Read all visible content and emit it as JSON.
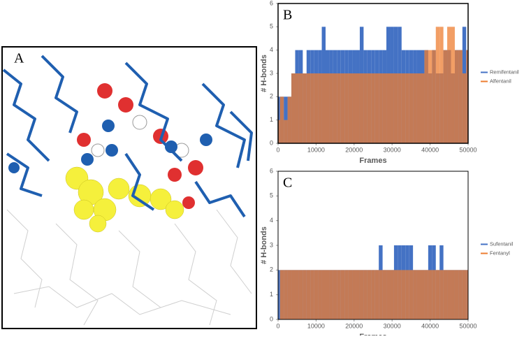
{
  "panel_a": {
    "label": "A"
  },
  "chart_data": [
    {
      "type": "bar",
      "panel_label": "B",
      "xlabel": "Frames",
      "ylabel": "# H-bonds",
      "xlim": [
        0,
        50000
      ],
      "xticks": [
        0,
        10000,
        20000,
        30000,
        40000,
        50000
      ],
      "ylim": [
        0,
        6
      ],
      "yticks": [
        0,
        1,
        2,
        3,
        4,
        5,
        6
      ],
      "grid": false,
      "legend": "right",
      "x": [
        0,
        1000,
        2000,
        3000,
        4000,
        5000,
        6000,
        7000,
        8000,
        9000,
        10000,
        11000,
        12000,
        13000,
        14000,
        15000,
        16000,
        17000,
        18000,
        19000,
        20000,
        21000,
        22000,
        23000,
        24000,
        25000,
        26000,
        27000,
        28000,
        29000,
        30000,
        31000,
        32000,
        33000,
        34000,
        35000,
        36000,
        37000,
        38000,
        39000,
        40000,
        41000,
        42000,
        43000,
        44000,
        45000,
        46000,
        47000,
        48000,
        49000,
        50000
      ],
      "series": [
        {
          "name": "Remifentanil",
          "color": "#4472c4",
          "values": [
            2,
            2,
            2,
            2,
            3,
            4,
            4,
            3,
            4,
            4,
            4,
            4,
            5,
            4,
            4,
            4,
            4,
            4,
            4,
            4,
            4,
            4,
            5,
            4,
            4,
            4,
            4,
            4,
            4,
            5,
            5,
            5,
            5,
            4,
            4,
            4,
            4,
            4,
            4,
            4,
            3,
            4,
            3,
            3,
            4,
            4,
            3,
            4,
            4,
            5,
            4
          ]
        },
        {
          "name": "Alfentanil",
          "color": "#ed7d31",
          "values": [
            1,
            2,
            1,
            2,
            3,
            3,
            3,
            3,
            3,
            3,
            3,
            3,
            3,
            3,
            3,
            3,
            3,
            3,
            3,
            3,
            3,
            3,
            3,
            3,
            3,
            3,
            3,
            3,
            3,
            3,
            3,
            3,
            3,
            3,
            3,
            3,
            3,
            3,
            3,
            4,
            4,
            4,
            5,
            5,
            4,
            5,
            5,
            4,
            4,
            3,
            4
          ]
        }
      ]
    },
    {
      "type": "bar",
      "panel_label": "C",
      "xlabel": "Frames",
      "ylabel": "# H-bonds",
      "xlim": [
        0,
        50000
      ],
      "xticks": [
        0,
        10000,
        20000,
        30000,
        40000,
        50000
      ],
      "ylim": [
        0,
        6
      ],
      "yticks": [
        0,
        1,
        2,
        3,
        4,
        5,
        6
      ],
      "grid": false,
      "legend": "right",
      "x": [
        0,
        1000,
        2000,
        3000,
        4000,
        5000,
        6000,
        7000,
        8000,
        9000,
        10000,
        11000,
        12000,
        13000,
        14000,
        15000,
        16000,
        17000,
        18000,
        19000,
        20000,
        21000,
        22000,
        23000,
        24000,
        25000,
        26000,
        27000,
        28000,
        29000,
        30000,
        31000,
        32000,
        33000,
        34000,
        35000,
        36000,
        37000,
        38000,
        39000,
        40000,
        41000,
        42000,
        43000,
        44000,
        45000,
        46000,
        47000,
        48000,
        49000,
        50000
      ],
      "series": [
        {
          "name": "Sufentanil",
          "color": "#4472c4",
          "values": [
            2,
            2,
            2,
            2,
            2,
            2,
            2,
            2,
            2,
            2,
            2,
            2,
            2,
            2,
            2,
            2,
            2,
            2,
            2,
            2,
            2,
            2,
            2,
            2,
            2,
            2,
            2,
            3,
            2,
            2,
            2,
            3,
            3,
            3,
            3,
            3,
            2,
            2,
            2,
            2,
            3,
            3,
            2,
            3,
            2,
            2,
            2,
            2,
            2,
            2,
            2
          ]
        },
        {
          "name": "Fentanyl",
          "color": "#ed7d31",
          "values": [
            0,
            2,
            2,
            2,
            2,
            2,
            2,
            2,
            2,
            2,
            2,
            2,
            2,
            2,
            2,
            2,
            2,
            2,
            2,
            2,
            2,
            2,
            2,
            2,
            2,
            2,
            2,
            2,
            2,
            2,
            2,
            2,
            2,
            2,
            2,
            2,
            2,
            2,
            2,
            2,
            2,
            2,
            2,
            2,
            2,
            2,
            2,
            2,
            2,
            2,
            2
          ]
        }
      ]
    }
  ]
}
